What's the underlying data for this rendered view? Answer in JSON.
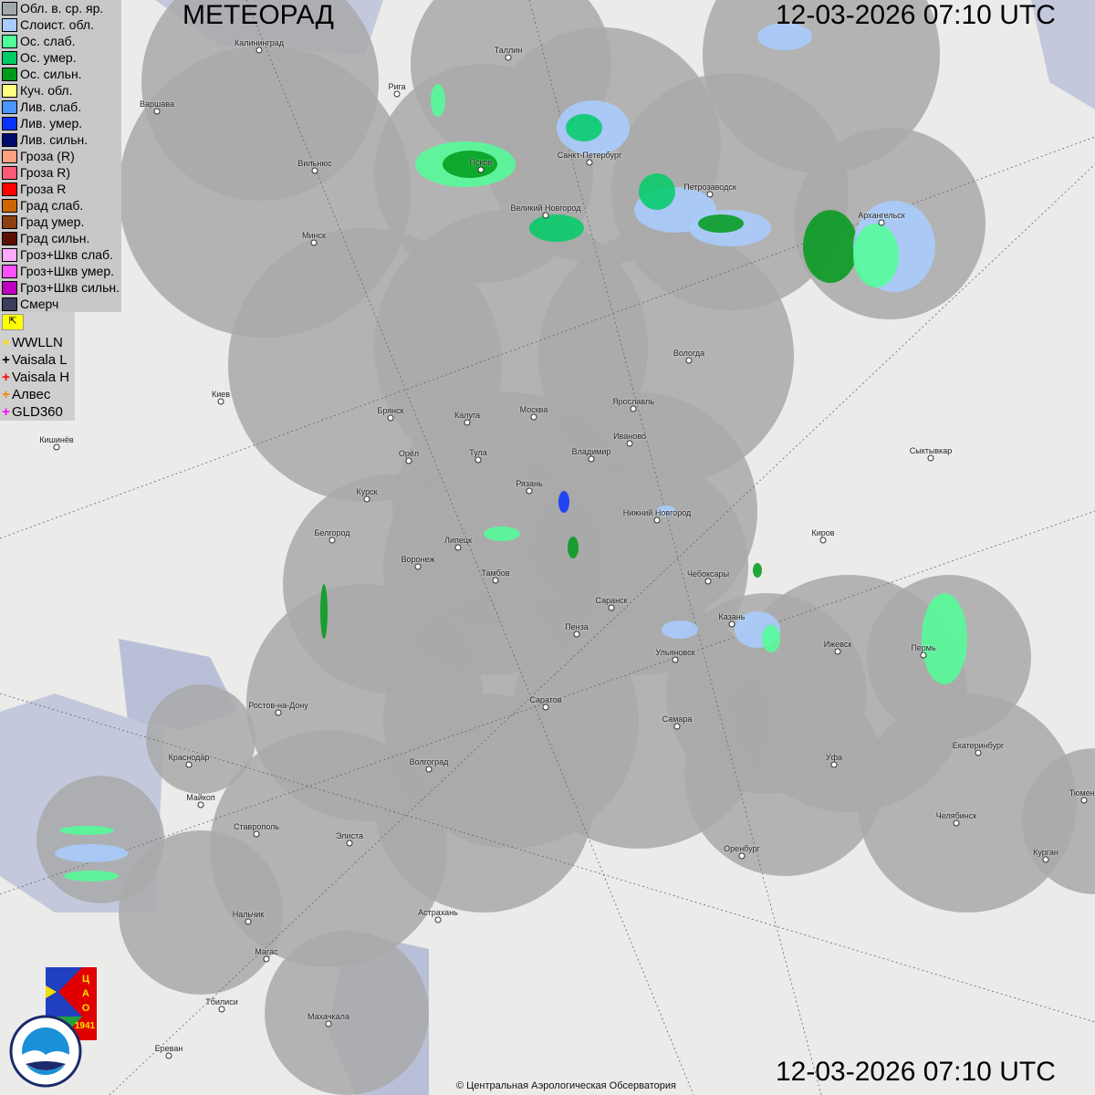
{
  "header": {
    "title": "МЕТЕОРАД",
    "timestamp": "12-03-2026  07:10 UTC"
  },
  "legend": [
    {
      "label": "Обл. в. ср. яр.",
      "color": "#a0a8ac"
    },
    {
      "label": "Слоист. обл.",
      "color": "#a8ccff"
    },
    {
      "label": "Ос. слаб.",
      "color": "#50ff98"
    },
    {
      "label": "Ос. умер.",
      "color": "#00cc66"
    },
    {
      "label": "Ос. сильн.",
      "color": "#009a1a"
    },
    {
      "label": "Куч. обл.",
      "color": "#ffff80"
    },
    {
      "label": "Лив. слаб.",
      "color": "#4c96ff"
    },
    {
      "label": "Лив. умер.",
      "color": "#0a32ff"
    },
    {
      "label": "Лив. сильн.",
      "color": "#000a6e"
    },
    {
      "label": "Гроза (R)",
      "color": "#ffa080"
    },
    {
      "label": "Гроза R)",
      "color": "#ff5a78"
    },
    {
      "label": "Гроза R",
      "color": "#ff0000"
    },
    {
      "label": "Град слаб.",
      "color": "#cc6600"
    },
    {
      "label": "Град умер.",
      "color": "#8a4010"
    },
    {
      "label": "Град сильн.",
      "color": "#5a1000"
    },
    {
      "label": "Гроз+Шкв слаб.",
      "color": "#ffaaff"
    },
    {
      "label": "Гроз+Шкв умер.",
      "color": "#ff50ff"
    },
    {
      "label": "Гроз+Шкв сильн.",
      "color": "#c000c0"
    },
    {
      "label": "Смерч",
      "color": "#3a3e5a"
    }
  ],
  "lightning": [
    {
      "label": "WWLLN",
      "color": "#ffe000"
    },
    {
      "label": "Vaisala L",
      "color": "#000000"
    },
    {
      "label": "Vaisala H",
      "color": "#ff0000"
    },
    {
      "label": "Алвес",
      "color": "#ff8000"
    },
    {
      "label": "GLD360",
      "color": "#ff00ff"
    }
  ],
  "lightning_toggle_icon": "flag-arrow-icon",
  "cities": [
    "Калининград",
    "Таллин",
    "Рига",
    "Варшава",
    "Вильнюс",
    "Псков",
    "Санкт-Петербург",
    "Петрозаводск",
    "Архангельск",
    "Великий Новгород",
    "Минск",
    "Вологда",
    "Киев",
    "Ярославль",
    "Брянск",
    "Калуга",
    "Москва",
    "Иваново",
    "Кишинёв",
    "Орёл",
    "Тула",
    "Владимир",
    "Сыктывкар",
    "Рязань",
    "Курск",
    "Нижний Новгород",
    "Белгород",
    "Киров",
    "Липецк",
    "Воронеж",
    "Тамбов",
    "Чебоксары",
    "Саранск",
    "Пенза",
    "Казань",
    "Ижевск",
    "Пермь",
    "Ульяновск",
    "Саратов",
    "Ростов-на-Дону",
    "Самара",
    "Екатеринбург",
    "Краснодар",
    "Уфа",
    "Волгоград",
    "Майкоп",
    "Тюмень",
    "Челябинск",
    "Ставрополь",
    "Элиста",
    "Оренбург",
    "Курган",
    "Нальчик",
    "Астрахань",
    "Магас",
    "Тбилиси",
    "Махачкала",
    "Ереван"
  ],
  "logos": {
    "cao": "ЦАО 1941",
    "roshydromet": "РОСГИДРОМЕТ ROSHYDROMET"
  },
  "copyright": "© Центральная Аэрологическая Обсерватория"
}
